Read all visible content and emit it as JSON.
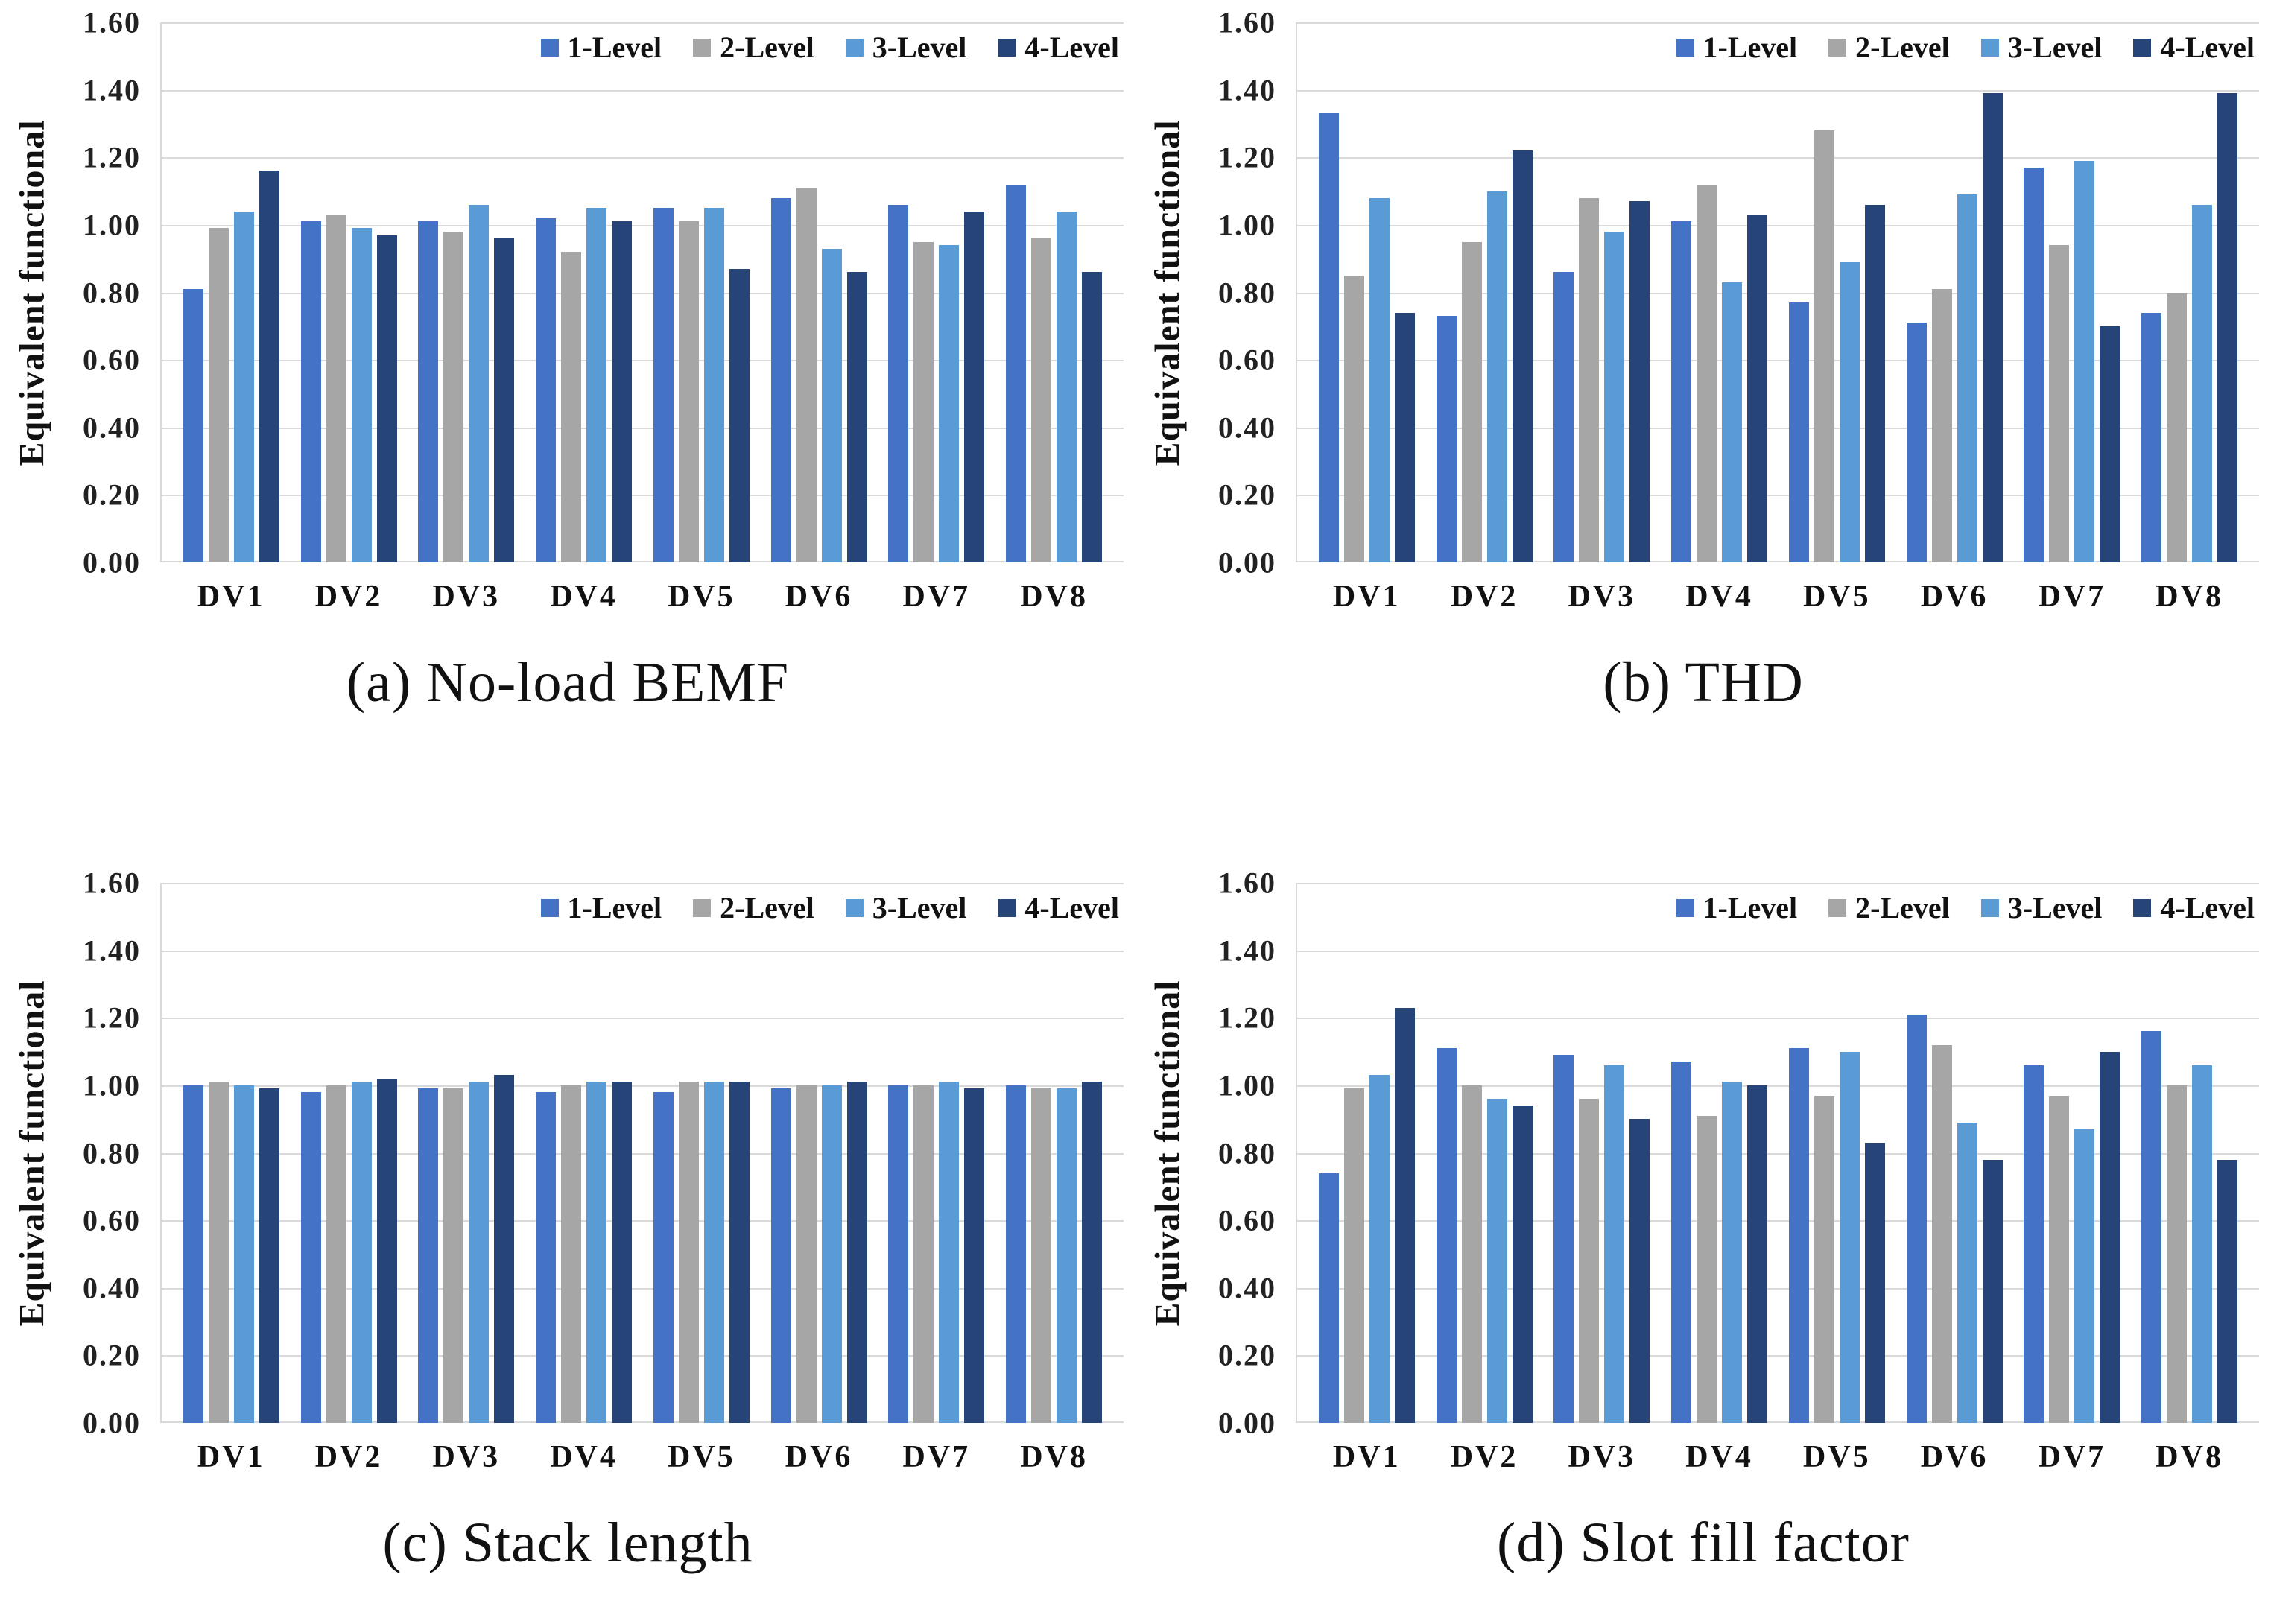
{
  "figure": {
    "description": "2x2 grid of grouped bar charts comparing surrogate model levels",
    "grid_color": "#d9d9d9",
    "background": "#ffffff"
  },
  "palette": {
    "level1": "#4472c4",
    "level2": "#a6a6a6",
    "level3": "#5b9bd5",
    "level4": "#264478"
  },
  "chart_data": [
    {
      "id": "a",
      "type": "bar",
      "caption": "(a) No-load BEMF",
      "ylabel": "Equivalent functional",
      "xlabel": "",
      "ylim": [
        0.0,
        1.6
      ],
      "ytick_step": 0.2,
      "ytick_labels": [
        "0.00",
        "0.20",
        "0.40",
        "0.60",
        "0.80",
        "1.00",
        "1.20",
        "1.40",
        "1.60"
      ],
      "grid": true,
      "legend_position": "top-right",
      "categories": [
        "DV1",
        "DV2",
        "DV3",
        "DV4",
        "DV5",
        "DV6",
        "DV7",
        "DV8"
      ],
      "series": [
        {
          "name": "1-Level",
          "color": "#4472c4",
          "values": [
            0.81,
            1.01,
            1.01,
            1.02,
            1.05,
            1.08,
            1.06,
            1.12
          ]
        },
        {
          "name": "2-Level",
          "color": "#a6a6a6",
          "values": [
            0.99,
            1.03,
            0.98,
            0.92,
            1.01,
            1.11,
            0.95,
            0.96
          ]
        },
        {
          "name": "3-Level",
          "color": "#5b9bd5",
          "values": [
            1.04,
            0.99,
            1.06,
            1.05,
            1.05,
            0.93,
            0.94,
            1.04
          ]
        },
        {
          "name": "4-Level",
          "color": "#264478",
          "values": [
            1.16,
            0.97,
            0.96,
            1.01,
            0.87,
            0.86,
            1.04,
            0.86
          ]
        }
      ]
    },
    {
      "id": "b",
      "type": "bar",
      "caption": "(b) THD",
      "ylabel": "Equivalent functional",
      "xlabel": "",
      "ylim": [
        0.0,
        1.6
      ],
      "ytick_step": 0.2,
      "ytick_labels": [
        "0.00",
        "0.20",
        "0.40",
        "0.60",
        "0.80",
        "1.00",
        "1.20",
        "1.40",
        "1.60"
      ],
      "grid": true,
      "legend_position": "top-right",
      "categories": [
        "DV1",
        "DV2",
        "DV3",
        "DV4",
        "DV5",
        "DV6",
        "DV7",
        "DV8"
      ],
      "series": [
        {
          "name": "1-Level",
          "color": "#4472c4",
          "values": [
            1.33,
            0.73,
            0.86,
            1.01,
            0.77,
            0.71,
            1.17,
            0.74
          ]
        },
        {
          "name": "2-Level",
          "color": "#a6a6a6",
          "values": [
            0.85,
            0.95,
            1.08,
            1.12,
            1.28,
            0.81,
            0.94,
            0.8
          ]
        },
        {
          "name": "3-Level",
          "color": "#5b9bd5",
          "values": [
            1.08,
            1.1,
            0.98,
            0.83,
            0.89,
            1.09,
            1.19,
            1.06
          ]
        },
        {
          "name": "4-Level",
          "color": "#264478",
          "values": [
            0.74,
            1.22,
            1.07,
            1.03,
            1.06,
            1.39,
            0.7,
            1.39
          ]
        }
      ]
    },
    {
      "id": "c",
      "type": "bar",
      "caption": "(c) Stack length",
      "ylabel": "Equivalent functional",
      "xlabel": "",
      "ylim": [
        0.0,
        1.6
      ],
      "ytick_step": 0.2,
      "ytick_labels": [
        "0.00",
        "0.20",
        "0.40",
        "0.60",
        "0.80",
        "1.00",
        "1.20",
        "1.40",
        "1.60"
      ],
      "grid": true,
      "legend_position": "top-right",
      "categories": [
        "DV1",
        "DV2",
        "DV3",
        "DV4",
        "DV5",
        "DV6",
        "DV7",
        "DV8"
      ],
      "series": [
        {
          "name": "1-Level",
          "color": "#4472c4",
          "values": [
            1.0,
            0.98,
            0.99,
            0.98,
            0.98,
            0.99,
            1.0,
            1.0
          ]
        },
        {
          "name": "2-Level",
          "color": "#a6a6a6",
          "values": [
            1.01,
            1.0,
            0.99,
            1.0,
            1.01,
            1.0,
            1.0,
            0.99
          ]
        },
        {
          "name": "3-Level",
          "color": "#5b9bd5",
          "values": [
            1.0,
            1.01,
            1.01,
            1.01,
            1.01,
            1.0,
            1.01,
            0.99
          ]
        },
        {
          "name": "4-Level",
          "color": "#264478",
          "values": [
            0.99,
            1.02,
            1.03,
            1.01,
            1.01,
            1.01,
            0.99,
            1.01
          ]
        }
      ]
    },
    {
      "id": "d",
      "type": "bar",
      "caption": "(d) Slot fill factor",
      "ylabel": "Equivalent functional",
      "xlabel": "",
      "ylim": [
        0.0,
        1.6
      ],
      "ytick_step": 0.2,
      "ytick_labels": [
        "0.00",
        "0.20",
        "0.40",
        "0.60",
        "0.80",
        "1.00",
        "1.20",
        "1.40",
        "1.60"
      ],
      "grid": true,
      "legend_position": "top-right",
      "categories": [
        "DV1",
        "DV2",
        "DV3",
        "DV4",
        "DV5",
        "DV6",
        "DV7",
        "DV8"
      ],
      "series": [
        {
          "name": "1-Level",
          "color": "#4472c4",
          "values": [
            0.74,
            1.11,
            1.09,
            1.07,
            1.11,
            1.21,
            1.06,
            1.16
          ]
        },
        {
          "name": "2-Level",
          "color": "#a6a6a6",
          "values": [
            0.99,
            1.0,
            0.96,
            0.91,
            0.97,
            1.12,
            0.97,
            1.0
          ]
        },
        {
          "name": "3-Level",
          "color": "#5b9bd5",
          "values": [
            1.03,
            0.96,
            1.06,
            1.01,
            1.1,
            0.89,
            0.87,
            1.06
          ]
        },
        {
          "name": "4-Level",
          "color": "#264478",
          "values": [
            1.23,
            0.94,
            0.9,
            1.0,
            0.83,
            0.78,
            1.1,
            0.78
          ]
        }
      ]
    }
  ]
}
